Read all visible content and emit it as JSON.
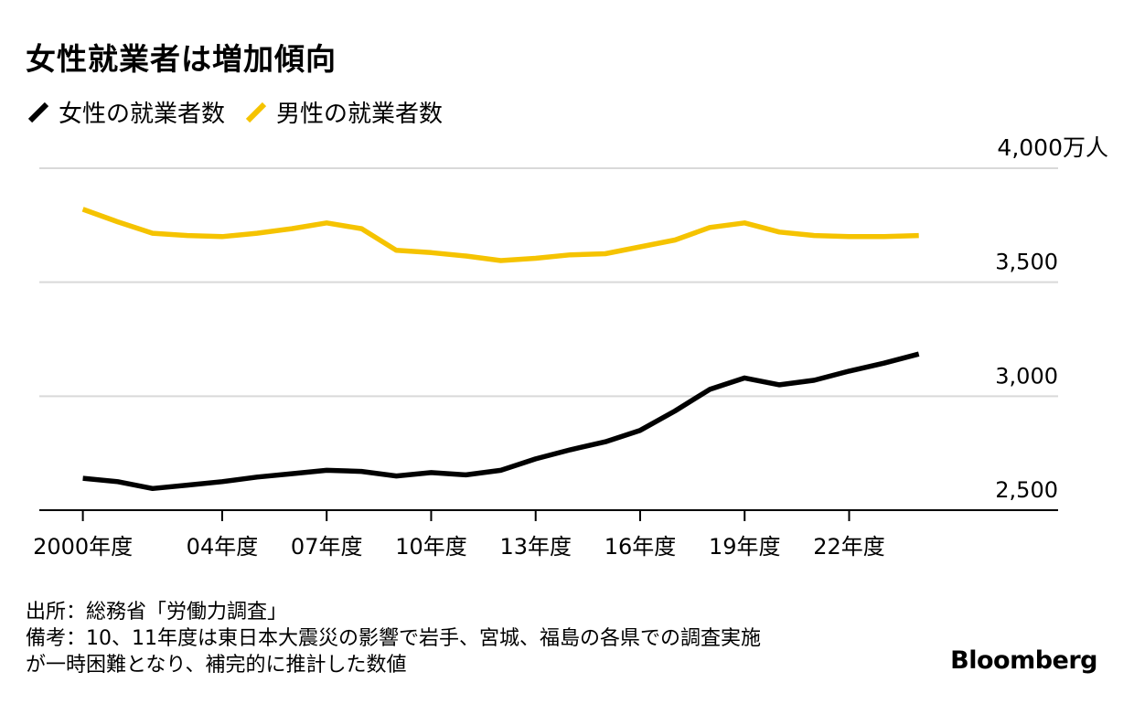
{
  "title": "女性就業者は増加傾向",
  "legend": [
    {
      "label": "女性の就業者数",
      "color": "#000000"
    },
    {
      "label": "男性の就業者数",
      "color": "#f5c300"
    }
  ],
  "footer": {
    "source": "出所：総務省「労働力調査」",
    "note_line1": "備考：10、11年度は東日本大震災の影響で岩手、宮城、福島の各県での調査実施",
    "note_line2": "が一時困難となり、補完的に推計した数値"
  },
  "brand": "Bloomberg",
  "chart_data": {
    "type": "line",
    "unit_label": "4,000万人",
    "x": [
      2000,
      2001,
      2002,
      2003,
      2004,
      2005,
      2006,
      2007,
      2008,
      2009,
      2010,
      2011,
      2012,
      2013,
      2014,
      2015,
      2016,
      2017,
      2018,
      2019,
      2020,
      2021,
      2022,
      2023,
      2024
    ],
    "x_tick_values": [
      2000,
      2004,
      2007,
      2010,
      2013,
      2016,
      2019,
      2022
    ],
    "x_tick_labels": [
      "2000年度",
      "04年度",
      "07年度",
      "10年度",
      "13年度",
      "16年度",
      "19年度",
      "22年度"
    ],
    "y_ticks": [
      2500,
      3000,
      3500
    ],
    "y_tick_labels": [
      "2,500",
      "3,000",
      "3,500"
    ],
    "ylim": [
      2500,
      4000
    ],
    "grid": true,
    "series": [
      {
        "name": "女性の就業者数",
        "color": "#000000",
        "values": [
          2640,
          2625,
          2595,
          2610,
          2625,
          2645,
          2660,
          2675,
          2670,
          2650,
          2665,
          2655,
          2675,
          2725,
          2765,
          2800,
          2850,
          2935,
          3030,
          3080,
          3050,
          3070,
          3110,
          3145,
          3185
        ]
      },
      {
        "name": "男性の就業者数",
        "color": "#f5c300",
        "values": [
          3820,
          3765,
          3715,
          3705,
          3700,
          3715,
          3735,
          3760,
          3735,
          3640,
          3630,
          3615,
          3595,
          3605,
          3620,
          3625,
          3655,
          3685,
          3740,
          3760,
          3720,
          3705,
          3700,
          3700,
          3705
        ]
      }
    ]
  }
}
